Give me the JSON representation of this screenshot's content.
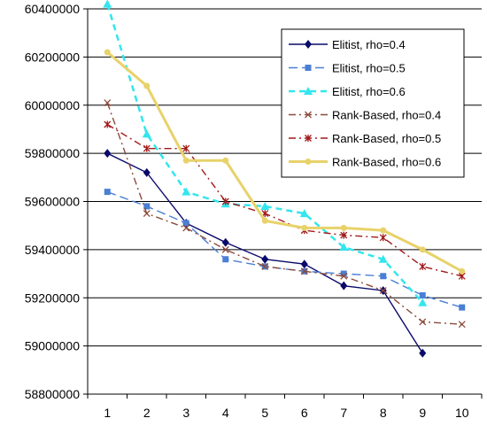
{
  "chart_data": {
    "type": "line",
    "x": [
      1,
      2,
      3,
      4,
      5,
      6,
      7,
      8,
      9,
      10
    ],
    "ylim": [
      58800000,
      60400000
    ],
    "ytick_labels": [
      "58800000",
      "59000000",
      "59200000",
      "59400000",
      "59600000",
      "59800000",
      "60000000",
      "60200000",
      "60400000"
    ],
    "xtick_labels": [
      "1",
      "2",
      "3",
      "4",
      "5",
      "6",
      "7",
      "8",
      "9",
      "10"
    ],
    "grid": true,
    "legend_position": "top-right",
    "series": [
      {
        "name": "Elitist, rho=0.4",
        "color": "#0a0a6b",
        "marker": "diamond",
        "dash": "solid",
        "values": [
          59800000,
          59720000,
          59510000,
          59430000,
          59360000,
          59340000,
          59250000,
          59230000,
          58970000,
          null
        ]
      },
      {
        "name": "Elitist, rho=0.5",
        "color": "#4a7fd4",
        "marker": "square",
        "dash": "longdash",
        "values": [
          59640000,
          59580000,
          59510000,
          59360000,
          59330000,
          59310000,
          59300000,
          59290000,
          59210000,
          59160000
        ]
      },
      {
        "name": "Elitist, rho=0.6",
        "color": "#33e6ee",
        "marker": "triangle",
        "dash": "dash",
        "values": [
          60420000,
          59880000,
          59640000,
          59590000,
          59580000,
          59550000,
          59410000,
          59360000,
          59180000,
          null
        ]
      },
      {
        "name": "Rank-Based, rho=0.4",
        "color": "#8b4a3a",
        "marker": "x",
        "dash": "dashdot",
        "values": [
          60010000,
          59550000,
          59490000,
          59400000,
          59330000,
          59310000,
          59290000,
          59230000,
          59100000,
          59090000
        ]
      },
      {
        "name": "Rank-Based, rho=0.5",
        "color": "#a01a1a",
        "marker": "star",
        "dash": "dashdot",
        "values": [
          59920000,
          59820000,
          59820000,
          59600000,
          59550000,
          59480000,
          59460000,
          59450000,
          59330000,
          59290000
        ]
      },
      {
        "name": "Rank-Based, rho=0.6",
        "color": "#e8d26a",
        "marker": "circle",
        "dash": "solid",
        "values": [
          60220000,
          60080000,
          59770000,
          59770000,
          59520000,
          59490000,
          59490000,
          59480000,
          59400000,
          59310000
        ]
      }
    ]
  }
}
